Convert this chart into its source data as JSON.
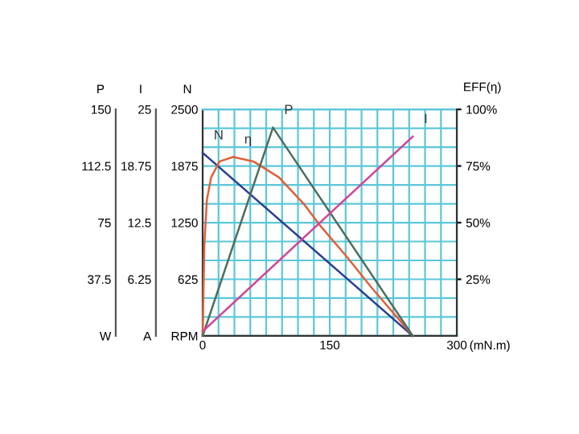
{
  "chart_data": [
    {
      "type": "line",
      "xlabel": "(mN.m)",
      "ylabel": "N",
      "y2label": "EFF(η)",
      "y3label": "P",
      "xlim": [
        0,
        300
      ],
      "xticks": [
        0,
        {
          "value": 18.75,
          "label": null
        },
        {
          "value": 37.5,
          "label": null
        },
        {
          "value": 56.25,
          "label": null
        },
        {
          "value": 75,
          "label": null
        },
        {
          "value": 93.75,
          "label": null
        },
        {
          "value": 112.5,
          "label": null
        },
        {
          "value": 131.25,
          "label": null
        },
        150,
        {
          "value": 168.75,
          "label": null
        },
        {
          "value": 187.5,
          "label": null
        },
        {
          "value": 206.25,
          "label": null
        },
        {
          "value": 225,
          "label": null
        },
        {
          "value": 243.75,
          "label": null
        },
        {
          "value": 262.5,
          "label": null
        },
        {
          "value": 281.25,
          "label": null
        },
        300
      ],
      "ylim": [
        0,
        2500
      ],
      "yticks": [
        {
          "value": 0,
          "label": "RPM"
        },
        {
          "value": 208.3,
          "label": null
        },
        {
          "value": 416.7,
          "label": null
        },
        625,
        {
          "value": 833.3,
          "label": null
        },
        {
          "value": 1041.7,
          "label": null
        },
        1250,
        {
          "value": 1458.3,
          "label": null
        },
        {
          "value": 1666.7,
          "label": null
        },
        1875,
        {
          "value": 2083.3,
          "label": null
        },
        {
          "value": 2291.7,
          "label": null
        },
        2500
      ],
      "y2lim": [
        0,
        100
      ],
      "y2ticks": [
        {
          "value": 25,
          "label": "25%"
        },
        {
          "value": 50,
          "label": "50%"
        },
        {
          "value": 75,
          "label": "75%"
        },
        {
          "value": 100,
          "label": "100%"
        }
      ],
      "y3lim": [
        0,
        150
      ],
      "y3ticks": [
        {
          "value": 0,
          "label": "W"
        },
        37.5,
        75,
        112.5,
        150
      ],
      "grid": true,
      "series": [
        {
          "name": "N",
          "color": "#2b3f8f",
          "x": [
            0,
            248
          ],
          "values": [
            2020,
            0
          ]
        },
        {
          "name": "η",
          "color": "#e0603a",
          "axis": "y2",
          "x": [
            0,
            1,
            2,
            5,
            10,
            20,
            36,
            60,
            90,
            120,
            138,
            170,
            200,
            230,
            248
          ],
          "values": [
            0,
            20,
            40,
            60,
            70,
            77,
            79,
            77,
            70,
            58,
            49,
            35,
            21,
            8,
            0
          ]
        },
        {
          "name": "P",
          "color": "#4e6e5e",
          "axis": "y3",
          "x": [
            0,
            83,
            248
          ],
          "values": [
            0,
            138,
            0
          ]
        }
      ]
    },
    {
      "type": "line",
      "ylabel": "I",
      "xlim": [
        0,
        300
      ],
      "ylim": [
        0,
        25
      ],
      "yticks": [
        {
          "value": 0,
          "label": "A"
        },
        6.25,
        12.5,
        18.75,
        25
      ],
      "tick_labels": "y",
      "series": [
        {
          "name": "I",
          "color": "#d0459a",
          "x": [
            0,
            248
          ],
          "values": [
            0.5,
            22
          ]
        }
      ]
    }
  ]
}
